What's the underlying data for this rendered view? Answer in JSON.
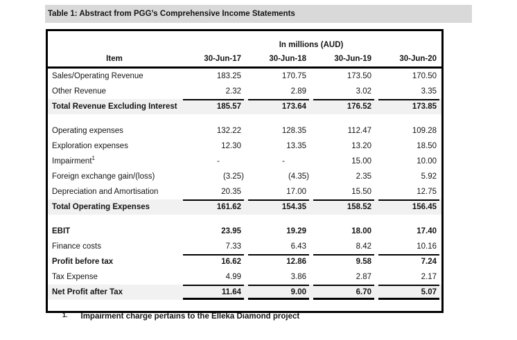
{
  "title": "Table 1: Abstract from PGG’s Comprehensive Income Statements",
  "table": {
    "units_header": "In millions (AUD)",
    "columns": [
      "Item",
      "30-Jun-17",
      "30-Jun-18",
      "30-Jun-19",
      "30-Jun-20"
    ],
    "rows": [
      {
        "label": "Sales/Operating Revenue",
        "values": [
          "183.25",
          "170.75",
          "173.50",
          "170.50"
        ],
        "style": "normal"
      },
      {
        "label": "Other Revenue",
        "values": [
          "2.32",
          "2.89",
          "3.02",
          "3.35"
        ],
        "style": "normal"
      },
      {
        "label": "Total Revenue Excluding Interest",
        "values": [
          "185.57",
          "173.64",
          "176.52",
          "173.85"
        ],
        "style": "total",
        "rule_top": true
      },
      {
        "label": "",
        "values": [
          "",
          "",
          "",
          ""
        ],
        "style": "spacer"
      },
      {
        "label": "Operating expenses",
        "values": [
          "132.22",
          "128.35",
          "112.47",
          "109.28"
        ],
        "style": "normal"
      },
      {
        "label": "Exploration expenses",
        "values": [
          "12.30",
          "13.35",
          "13.20",
          "18.50"
        ],
        "style": "normal"
      },
      {
        "label": "Impairment",
        "sup": "1",
        "values": [
          "-",
          "-",
          "15.00",
          "10.00"
        ],
        "style": "normal"
      },
      {
        "label": "Foreign exchange gain/(loss)",
        "values": [
          "(3.25)",
          "(4.35)",
          "2.35",
          "5.92"
        ],
        "style": "normal"
      },
      {
        "label": "Depreciation and Amortisation",
        "values": [
          "20.35",
          "17.00",
          "15.50",
          "12.75"
        ],
        "style": "normal"
      },
      {
        "label": "Total Operating Expenses",
        "values": [
          "161.62",
          "154.35",
          "158.52",
          "156.45"
        ],
        "style": "total",
        "rule_top": true
      },
      {
        "label": "",
        "values": [
          "",
          "",
          "",
          ""
        ],
        "style": "spacer"
      },
      {
        "label": "EBIT",
        "values": [
          "23.95",
          "19.29",
          "18.00",
          "17.40"
        ],
        "style": "bold"
      },
      {
        "label": "Finance costs",
        "values": [
          "7.33",
          "6.43",
          "8.42",
          "10.16"
        ],
        "style": "normal"
      },
      {
        "label": "Profit before tax",
        "values": [
          "16.62",
          "12.86",
          "9.58",
          "7.24"
        ],
        "style": "bold",
        "rule_top": true
      },
      {
        "label": "Tax Expense",
        "values": [
          "4.99",
          "3.86",
          "2.87",
          "2.17"
        ],
        "style": "normal"
      },
      {
        "label": "Net Profit after Tax",
        "values": [
          "11.64",
          "9.00",
          "6.70",
          "5.07"
        ],
        "style": "total",
        "rule_top": true,
        "rule_bottom": true
      },
      {
        "label": "",
        "values": [
          "",
          "",
          "",
          ""
        ],
        "style": "spacer-end"
      }
    ]
  },
  "footnote": {
    "marker": "1.",
    "text": "Impairment charge pertains to the Elleka Diamond project"
  },
  "colors": {
    "title_bar_bg": "#d9d9d9",
    "total_row_bg": "#f1f1f1",
    "border": "#000000"
  }
}
